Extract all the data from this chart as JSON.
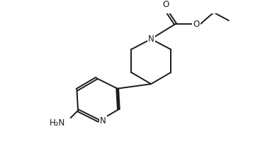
{
  "bg_color": "#ffffff",
  "line_color": "#1a1a1a",
  "line_width": 1.4,
  "font_size": 8.5,
  "figsize": [
    3.74,
    2.0
  ],
  "dpi": 100,
  "xlim": [
    0.0,
    10.0
  ],
  "ylim": [
    0.0,
    5.5
  ]
}
